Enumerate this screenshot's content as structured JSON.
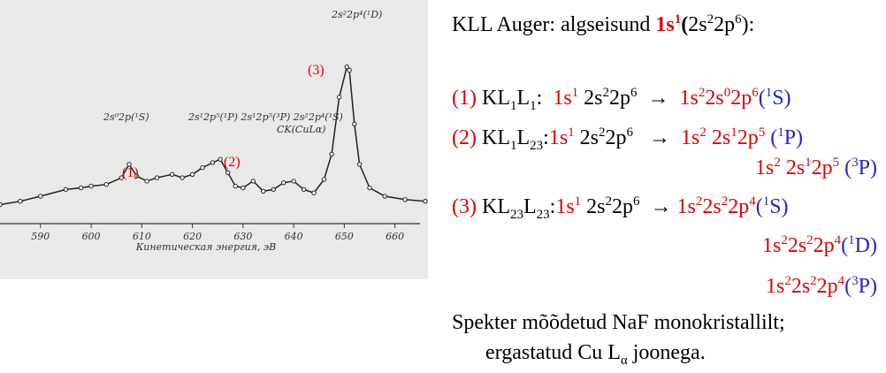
{
  "figure": {
    "x": [
      582,
      586,
      590,
      595,
      598,
      600,
      603,
      606,
      607.5,
      609,
      611,
      613,
      616,
      618,
      620,
      622,
      624,
      625.5,
      627,
      628.5,
      630,
      632,
      634,
      636,
      638,
      640,
      642,
      644,
      646,
      647.5,
      649,
      650.5,
      651,
      652,
      653,
      655,
      658,
      662,
      666
    ],
    "y": [
      15,
      17,
      20,
      24,
      25,
      26,
      27,
      31,
      39,
      32,
      29,
      31,
      33,
      31,
      33,
      37,
      40,
      42,
      34,
      26,
      25,
      29,
      23,
      24,
      28,
      29,
      24,
      22,
      30,
      45,
      79,
      97,
      95,
      63,
      39,
      25,
      20,
      18,
      17
    ],
    "xlim": [
      582,
      666
    ],
    "ylim": [
      0,
      100
    ],
    "xticks": [
      590,
      600,
      610,
      620,
      630,
      640,
      650,
      660
    ],
    "xlabel": "Кинетическая энергия, эВ",
    "annotations": [
      "2s²2p⁴(¹D)",
      "(3)",
      "2s⁰2p(¹S)",
      "2s¹2p⁵(¹P) 2s¹2p⁵(³P) 2s²2p⁴(¹S)",
      "CK(CuLα)",
      "(1)",
      "(2)"
    ]
  },
  "text": {
    "lines": [
      {
        "segments": [
          {
            "t": "KLL Auger: algseisund "
          },
          {
            "t": "1s",
            "c": "red",
            "b": true
          },
          {
            "t": "1",
            "f": "sup",
            "c": "red",
            "b": true
          },
          {
            "t": "(",
            "b": true
          },
          {
            "t": "2s"
          },
          {
            "t": "2",
            "f": "sup"
          },
          {
            "t": "2p"
          },
          {
            "t": "6",
            "f": "sup"
          },
          {
            "t": "):"
          }
        ]
      },
      {
        "segments": [
          {
            "t": "(1)",
            "c": "red"
          },
          {
            "t": " KL"
          },
          {
            "t": "1",
            "f": "sub"
          },
          {
            "t": "L"
          },
          {
            "t": "1",
            "f": "sub"
          },
          {
            "t": ":  "
          },
          {
            "t": "1s",
            "c": "red"
          },
          {
            "t": "1",
            "f": "sup",
            "c": "red"
          },
          {
            "t": " 2s"
          },
          {
            "t": "2",
            "f": "sup"
          },
          {
            "t": "2p"
          },
          {
            "t": "6",
            "f": "sup"
          },
          {
            "t": "  →  "
          },
          {
            "t": "1s",
            "c": "red"
          },
          {
            "t": "2",
            "f": "sup",
            "c": "red"
          },
          {
            "t": "2s",
            "c": "red"
          },
          {
            "t": "0",
            "f": "sup",
            "c": "red"
          },
          {
            "t": "2p",
            "c": "red"
          },
          {
            "t": "6",
            "f": "sup",
            "c": "red"
          },
          {
            "t": "(",
            "c": "blue"
          },
          {
            "t": "1",
            "f": "sup",
            "c": "blue"
          },
          {
            "t": "S)",
            "c": "blue"
          }
        ]
      },
      {
        "segments": [
          {
            "t": "(2)",
            "c": "red"
          },
          {
            "t": " KL"
          },
          {
            "t": "1",
            "f": "sub"
          },
          {
            "t": "L"
          },
          {
            "t": "23",
            "f": "sub"
          },
          {
            "t": ":"
          },
          {
            "t": "1s",
            "c": "red"
          },
          {
            "t": "1",
            "f": "sup",
            "c": "red"
          },
          {
            "t": " 2s"
          },
          {
            "t": "2",
            "f": "sup"
          },
          {
            "t": "2p"
          },
          {
            "t": "6",
            "f": "sup"
          },
          {
            "t": "   →  "
          },
          {
            "t": "1s",
            "c": "red"
          },
          {
            "t": "2",
            "f": "sup",
            "c": "red"
          },
          {
            "t": " 2s",
            "c": "red"
          },
          {
            "t": "1",
            "f": "sup",
            "c": "red"
          },
          {
            "t": "2p",
            "c": "red"
          },
          {
            "t": "5",
            "f": "sup",
            "c": "red"
          },
          {
            "t": " (",
            "c": "blue"
          },
          {
            "t": "1",
            "f": "sup",
            "c": "blue"
          },
          {
            "t": "P)",
            "c": "blue"
          }
        ]
      },
      {
        "segments": [
          {
            "t": "1s",
            "c": "red"
          },
          {
            "t": "2",
            "f": "sup",
            "c": "red"
          },
          {
            "t": " 2s",
            "c": "red"
          },
          {
            "t": "1",
            "f": "sup",
            "c": "red"
          },
          {
            "t": "2p",
            "c": "red"
          },
          {
            "t": "5",
            "f": "sup",
            "c": "red"
          },
          {
            "t": " (",
            "c": "blue"
          },
          {
            "t": "3",
            "f": "sup",
            "c": "blue"
          },
          {
            "t": "P)",
            "c": "blue"
          }
        ]
      },
      {
        "segments": [
          {
            "t": "(3)",
            "c": "red"
          },
          {
            "t": " KL"
          },
          {
            "t": "23",
            "f": "sub"
          },
          {
            "t": "L"
          },
          {
            "t": "23",
            "f": "sub"
          },
          {
            "t": ":"
          },
          {
            "t": "1s",
            "c": "red"
          },
          {
            "t": "1",
            "f": "sup",
            "c": "red"
          },
          {
            "t": " 2s"
          },
          {
            "t": "2",
            "f": "sup"
          },
          {
            "t": "2p"
          },
          {
            "t": "6",
            "f": "sup"
          },
          {
            "t": "  → "
          },
          {
            "t": "1s",
            "c": "red"
          },
          {
            "t": "2",
            "f": "sup",
            "c": "red"
          },
          {
            "t": "2s",
            "c": "red"
          },
          {
            "t": "2",
            "f": "sup",
            "c": "red"
          },
          {
            "t": "2p",
            "c": "red"
          },
          {
            "t": "4",
            "f": "sup",
            "c": "red"
          },
          {
            "t": "(",
            "c": "blue"
          },
          {
            "t": "1",
            "f": "sup",
            "c": "blue"
          },
          {
            "t": "S)",
            "c": "blue"
          }
        ]
      },
      {
        "segments": [
          {
            "t": "1s",
            "c": "red"
          },
          {
            "t": "2",
            "f": "sup",
            "c": "red"
          },
          {
            "t": "2s",
            "c": "red"
          },
          {
            "t": "2",
            "f": "sup",
            "c": "red"
          },
          {
            "t": "2p",
            "c": "red"
          },
          {
            "t": "4",
            "f": "sup",
            "c": "red"
          },
          {
            "t": "(",
            "c": "blue"
          },
          {
            "t": "1",
            "f": "sup",
            "c": "blue"
          },
          {
            "t": "D)",
            "c": "blue"
          }
        ]
      },
      {
        "segments": [
          {
            "t": "1s",
            "c": "red"
          },
          {
            "t": "2",
            "f": "sup",
            "c": "red"
          },
          {
            "t": "2s",
            "c": "red"
          },
          {
            "t": "2",
            "f": "sup",
            "c": "red"
          },
          {
            "t": "2p",
            "c": "red"
          },
          {
            "t": "4",
            "f": "sup",
            "c": "red"
          },
          {
            "t": "(",
            "c": "blue"
          },
          {
            "t": "3",
            "f": "sup",
            "c": "blue"
          },
          {
            "t": "P)",
            "c": "blue"
          }
        ]
      },
      {
        "segments": [
          {
            "t": "Spekter mõõdetud NaF monokristallilt;"
          }
        ]
      },
      {
        "segments": [
          {
            "t": "ergastatud Cu L"
          },
          {
            "t": "α",
            "f": "sub"
          },
          {
            "t": " joonega."
          }
        ]
      }
    ]
  }
}
